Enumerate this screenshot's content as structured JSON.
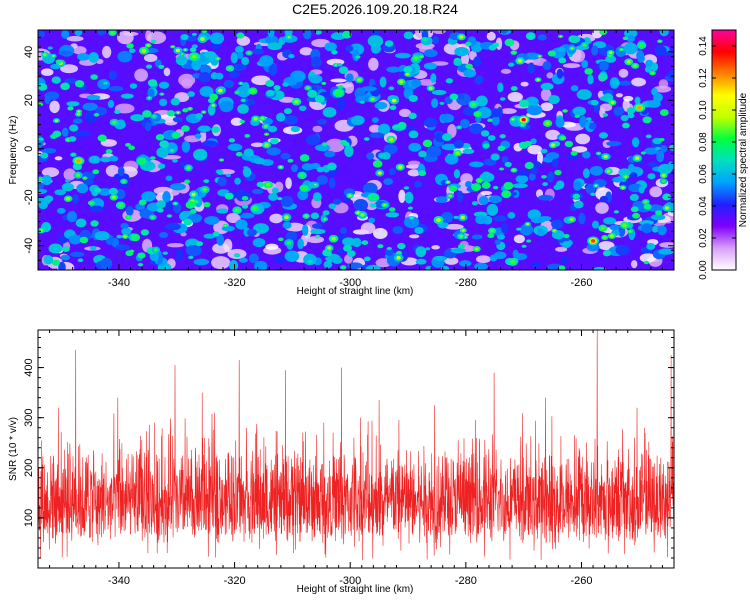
{
  "title": "C2E5.2026.109.20.18.R24",
  "chart_data": [
    {
      "type": "heatmap",
      "xlabel": "Height of straight line (km)",
      "ylabel": "Frequency (Hz)",
      "xlim": [
        -354,
        -244
      ],
      "ylim": [
        -50,
        49
      ],
      "xticks": [
        -340,
        -320,
        -300,
        -280,
        -260
      ],
      "yticks": [
        -40,
        -20,
        0,
        20,
        40
      ],
      "colorbar": {
        "label": "Normalized spectral amplitude",
        "range": [
          0,
          0.15
        ],
        "ticks": [
          "0.00",
          "0.02",
          "0.04",
          "0.06",
          "0.08",
          "0.10",
          "0.12",
          "0.14"
        ],
        "colormap": [
          "#ffffff",
          "#d8a0f8",
          "#7f00ff",
          "#2020ff",
          "#00a0ff",
          "#00e0c0",
          "#00ff40",
          "#c0ff00",
          "#ffff00",
          "#ff8000",
          "#ff0000",
          "#ff00a0"
        ]
      },
      "notable_peaks": [
        {
          "x": -270,
          "y": 12,
          "value": 0.14
        },
        {
          "x": -258,
          "y": -38,
          "value": 0.13
        },
        {
          "x": -347,
          "y": -5,
          "value": 0.12
        },
        {
          "x": -250,
          "y": 17,
          "value": 0.12
        },
        {
          "x": -327,
          "y": 38,
          "value": 0.09
        },
        {
          "x": -302,
          "y": 23,
          "value": 0.08
        },
        {
          "x": -296,
          "y": -20,
          "value": 0.07
        }
      ]
    },
    {
      "type": "line",
      "xlabel": "Height of straight line (km)",
      "ylabel": "SNR (10 * v/v)",
      "xlim": [
        -354,
        -244
      ],
      "ylim": [
        0,
        475
      ],
      "xticks": [
        -340,
        -320,
        -300,
        -280,
        -260
      ],
      "yticks": [
        100,
        200,
        300,
        400
      ],
      "line_color": "#ee2222",
      "series": [
        {
          "baseline_mean": 125,
          "typical_range": [
            50,
            230
          ]
        }
      ],
      "peaks": [
        {
          "x": -347.5,
          "y": 435
        },
        {
          "x": -330.3,
          "y": 405
        },
        {
          "x": -319.2,
          "y": 415
        },
        {
          "x": -311.2,
          "y": 395
        },
        {
          "x": -301.5,
          "y": 400
        },
        {
          "x": -275.1,
          "y": 390
        },
        {
          "x": -257.3,
          "y": 475
        },
        {
          "x": -244.5,
          "y": 425
        },
        {
          "x": -350.5,
          "y": 320
        },
        {
          "x": -340.2,
          "y": 340
        },
        {
          "x": -325.6,
          "y": 350
        },
        {
          "x": -295.0,
          "y": 335
        },
        {
          "x": -285.4,
          "y": 325
        },
        {
          "x": -266.2,
          "y": 340
        },
        {
          "x": -250.4,
          "y": 320
        }
      ]
    }
  ]
}
